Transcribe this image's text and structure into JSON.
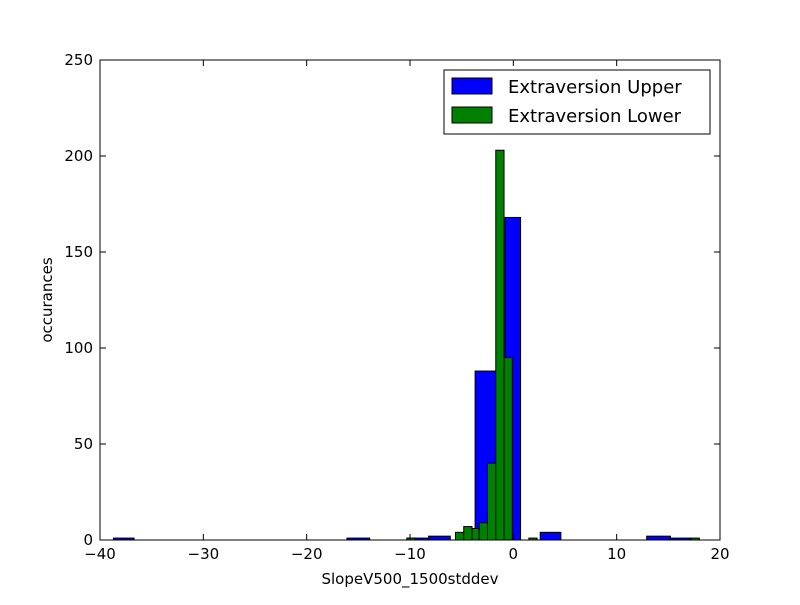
{
  "chart_data": {
    "type": "bar",
    "title": "",
    "xlabel": "SlopeV500_1500stddev",
    "ylabel": "occurances",
    "xlim": [
      -40,
      20
    ],
    "ylim": [
      0,
      250
    ],
    "x_ticks": [
      -40,
      -30,
      -20,
      -10,
      0,
      10,
      20
    ],
    "x_tick_labels": [
      "−40",
      "−30",
      "−20",
      "−10",
      "0",
      "10",
      "20"
    ],
    "y_ticks": [
      0,
      50,
      100,
      150,
      200,
      250
    ],
    "y_tick_labels": [
      "0",
      "50",
      "100",
      "150",
      "200",
      "250"
    ],
    "grid": false,
    "legend_position": "top-right",
    "series": [
      {
        "name": "Extraversion Upper",
        "color": "#0000ff",
        "bins": [
          {
            "x0": -38.7,
            "x1": -36.7,
            "value": 1
          },
          {
            "x0": -16.1,
            "x1": -13.9,
            "value": 1
          },
          {
            "x0": -10.3,
            "x1": -8.2,
            "value": 1
          },
          {
            "x0": -8.2,
            "x1": -6.1,
            "value": 2
          },
          {
            "x0": -3.7,
            "x1": -1.7,
            "value": 88
          },
          {
            "x0": -0.8,
            "x1": 0.7,
            "value": 168
          },
          {
            "x0": 2.6,
            "x1": 4.6,
            "value": 4
          },
          {
            "x0": 12.9,
            "x1": 15.2,
            "value": 2
          },
          {
            "x0": 15.2,
            "x1": 17.2,
            "value": 1
          }
        ]
      },
      {
        "name": "Extraversion Lower",
        "color": "#008000",
        "bins": [
          {
            "x0": -10.3,
            "x1": -9.5,
            "value": 1
          },
          {
            "x0": -5.6,
            "x1": -4.8,
            "value": 4
          },
          {
            "x0": -4.8,
            "x1": -4.0,
            "value": 7
          },
          {
            "x0": -4.0,
            "x1": -3.3,
            "value": 6
          },
          {
            "x0": -3.3,
            "x1": -2.5,
            "value": 9
          },
          {
            "x0": -2.5,
            "x1": -1.7,
            "value": 40
          },
          {
            "x0": -1.7,
            "x1": -0.9,
            "value": 203
          },
          {
            "x0": -0.9,
            "x1": -0.1,
            "value": 95
          },
          {
            "x0": 1.5,
            "x1": 2.3,
            "value": 1
          },
          {
            "x0": 17.2,
            "x1": 18.0,
            "value": 1
          }
        ]
      }
    ]
  }
}
